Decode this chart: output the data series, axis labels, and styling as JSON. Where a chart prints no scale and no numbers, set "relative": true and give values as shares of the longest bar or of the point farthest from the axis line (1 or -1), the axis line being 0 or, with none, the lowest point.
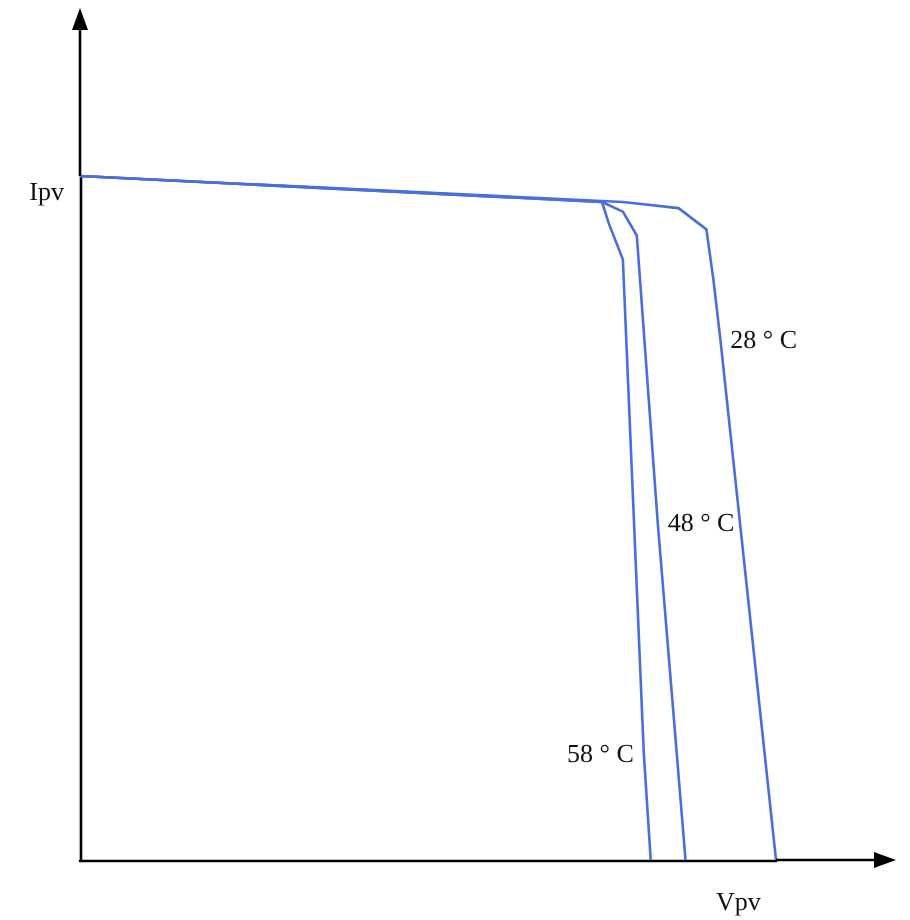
{
  "chart_data": {
    "type": "line",
    "relative": true,
    "xlabel": "Vpv",
    "ylabel": "Ipv",
    "grid": false,
    "marker": "none",
    "line_style": "solid",
    "categories": [
      null,
      null,
      null,
      null,
      null,
      null,
      null,
      null,
      null,
      null,
      null,
      null,
      null,
      null,
      null,
      null,
      null,
      null,
      null,
      null,
      null,
      null,
      null,
      null,
      null,
      null,
      null,
      null,
      null,
      null,
      null,
      null,
      null,
      null,
      null,
      null,
      null,
      null,
      null,
      null,
      null,
      null,
      null,
      null,
      null,
      null,
      null,
      null,
      null,
      null,
      null,
      null,
      null,
      null,
      null,
      null,
      null,
      null,
      null,
      null,
      null,
      null,
      null,
      null,
      null,
      null,
      null,
      null,
      null,
      null,
      null,
      null,
      null,
      null,
      null,
      null,
      null,
      null,
      null,
      null,
      null,
      null,
      null,
      null,
      null,
      null,
      null,
      null,
      null,
      null,
      null,
      null,
      null,
      null,
      null,
      null,
      null,
      null,
      null,
      null,
      null
    ],
    "series": [
      {
        "name": "28 ° C",
        "color": "#4a6fdc",
        "values": [
          1,
          null,
          null,
          null,
          null,
          null,
          null,
          null,
          null,
          null,
          null,
          null,
          null,
          null,
          null,
          null,
          null,
          null,
          null,
          null,
          null,
          null,
          null,
          null,
          null,
          null,
          null,
          null,
          null,
          null,
          null,
          null,
          null,
          null,
          null,
          null,
          null,
          null,
          null,
          null,
          null,
          null,
          null,
          null,
          null,
          null,
          null,
          null,
          null,
          null,
          null,
          null,
          null,
          null,
          null,
          null,
          null,
          null,
          null,
          null,
          null,
          null,
          null,
          null,
          null,
          null,
          null,
          null,
          null,
          null,
          null,
          null,
          null,
          null,
          null,
          null,
          null,
          null,
          0.962,
          null,
          null,
          null,
          null,
          null,
          null,
          null,
          0.953,
          null,
          null,
          null,
          0.922,
          0.849,
          0.762,
          null,
          null,
          null,
          null,
          null,
          null,
          null,
          0
        ]
      },
      {
        "name": "48 ° C",
        "color": "#4a6fdc",
        "values": [
          1,
          null,
          null,
          null,
          null,
          null,
          null,
          null,
          null,
          null,
          null,
          null,
          null,
          null,
          null,
          null,
          null,
          null,
          null,
          null,
          null,
          null,
          null,
          null,
          null,
          null,
          null,
          null,
          null,
          null,
          null,
          null,
          null,
          null,
          null,
          null,
          null,
          null,
          null,
          null,
          null,
          null,
          null,
          null,
          null,
          null,
          null,
          null,
          null,
          null,
          null,
          null,
          null,
          null,
          null,
          null,
          null,
          null,
          null,
          null,
          null,
          null,
          null,
          null,
          null,
          null,
          null,
          null,
          null,
          null,
          null,
          null,
          null,
          null,
          null,
          0.962,
          null,
          null,
          0.948,
          null,
          0.913,
          null,
          null,
          0.494,
          null,
          null,
          null,
          0,
          null,
          null,
          null,
          null,
          null,
          null,
          null,
          null,
          null,
          null,
          null,
          null,
          null
        ]
      },
      {
        "name": "58 ° C",
        "color": "#4a6fdc",
        "values": [
          1,
          null,
          null,
          null,
          null,
          null,
          null,
          null,
          null,
          null,
          null,
          null,
          null,
          null,
          null,
          null,
          null,
          null,
          null,
          null,
          null,
          null,
          null,
          null,
          null,
          null,
          null,
          null,
          null,
          null,
          null,
          null,
          null,
          null,
          null,
          null,
          null,
          null,
          null,
          null,
          null,
          null,
          null,
          null,
          null,
          null,
          null,
          null,
          null,
          null,
          null,
          null,
          null,
          null,
          null,
          null,
          null,
          null,
          null,
          null,
          null,
          null,
          null,
          null,
          null,
          null,
          null,
          null,
          null,
          null,
          null,
          null,
          null,
          null,
          null,
          0.962,
          0.93,
          null,
          0.878,
          null,
          null,
          0.157,
          0,
          null,
          null,
          null,
          null,
          null,
          null,
          null,
          null,
          null,
          null,
          null,
          null,
          null,
          null,
          null,
          null,
          null,
          null
        ]
      }
    ]
  }
}
